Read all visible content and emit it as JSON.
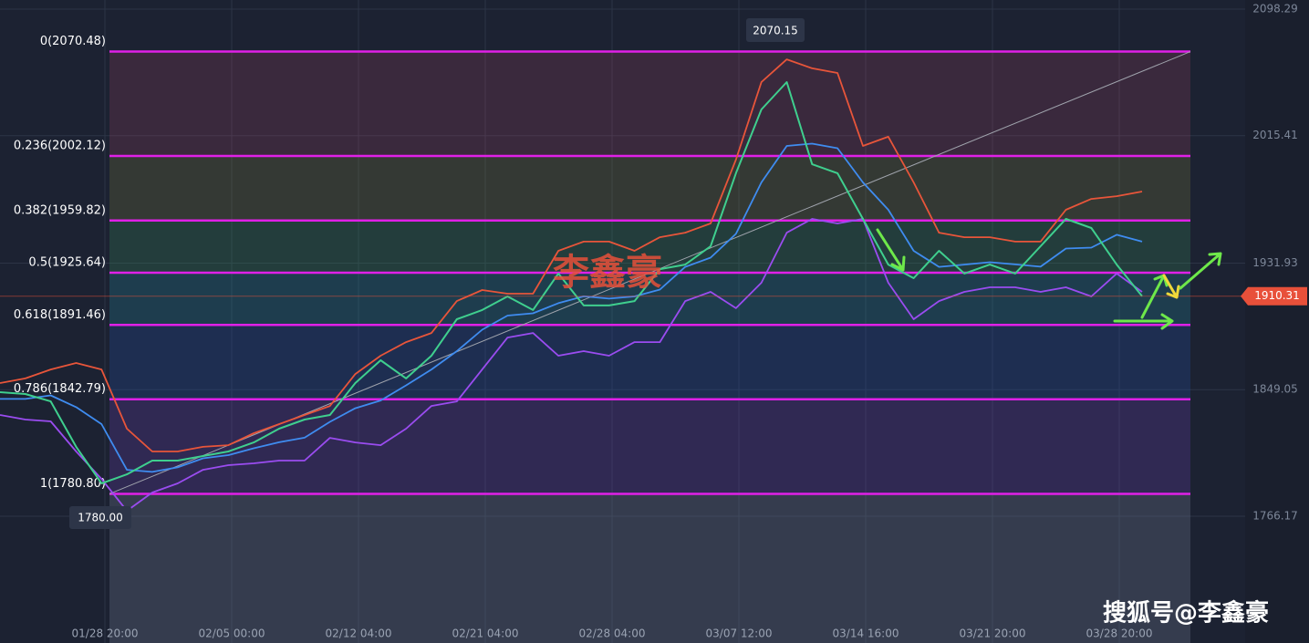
{
  "chart_data": {
    "type": "line",
    "ylim": [
      1683.14,
      2104.26
    ],
    "yticks": [
      1766.17,
      1849.05,
      1931.93,
      2015.41,
      2098.29
    ],
    "time_labels": [
      "01/28 20:00",
      "02/05 00:00",
      "02/12 04:00",
      "02/21 04:00",
      "02/28 04:00",
      "03/07 12:00",
      "03/14 16:00",
      "03/21 20:00",
      "03/28 20:00"
    ],
    "fib_levels": [
      {
        "value": 2070.48,
        "label": "0(2070.48)",
        "fill": "rgba(200,80,110,0.18)"
      },
      {
        "value": 2002.12,
        "label": "0.236(2002.12)",
        "fill": "rgba(150,150,60,0.20)"
      },
      {
        "value": 1959.82,
        "label": "0.382(1959.82)",
        "fill": "rgba(60,150,90,0.24)"
      },
      {
        "value": 1925.64,
        "label": "0.5(1925.64)",
        "fill": "rgba(40,140,160,0.26)"
      },
      {
        "value": 1891.46,
        "label": "0.618(1891.46)",
        "fill": "rgba(40,80,170,0.26)"
      },
      {
        "value": 1842.79,
        "label": "0.786(1842.79)",
        "fill": "rgba(100,60,170,0.28)"
      },
      {
        "value": 1780.8,
        "label": "1(1780.80)",
        "fill": "rgba(120,130,150,0.28)"
      }
    ],
    "fib_color": "#e020e8",
    "series": [
      {
        "color": "#e8553a",
        "values": [
          1853.4,
          1856.4,
          1862.3,
          1866.5,
          1862.3,
          1823.5,
          1808.6,
          1808.6,
          1811.6,
          1812.7,
          1820.5,
          1826.5,
          1832.5,
          1838.4,
          1859.3,
          1871.3,
          1880.2,
          1886.2,
          1907.1,
          1914.3,
          1911.9,
          1911.9,
          1940.0,
          1946.0,
          1946.0,
          1940.0,
          1948.9,
          1951.9,
          1957.9,
          1999.7,
          2050.5,
          2065.4,
          2059.5,
          2056.5,
          2008.7,
          2014.7,
          1984.8,
          1951.9,
          1948.9,
          1948.9,
          1946.0,
          1946.0,
          1966.9,
          1974.0,
          1975.8,
          1978.8
        ]
      },
      {
        "color": "#9a4cf0",
        "values": [
          1832.5,
          1829.5,
          1828.3,
          1808.6,
          1790.6,
          1769.7,
          1781.7,
          1787.7,
          1796.6,
          1799.6,
          1800.8,
          1802.6,
          1802.6,
          1817.5,
          1814.5,
          1812.7,
          1823.5,
          1838.4,
          1841.4,
          1862.3,
          1883.2,
          1886.2,
          1871.3,
          1874.3,
          1871.3,
          1880.2,
          1880.2,
          1907.1,
          1913.1,
          1902.4,
          1919.1,
          1951.9,
          1960.9,
          1957.9,
          1960.9,
          1919.1,
          1895.2,
          1907.1,
          1913.1,
          1916.1,
          1916.1,
          1913.1,
          1916.1,
          1910.1,
          1925.1,
          1913.1
        ]
      },
      {
        "color": "#3f8cf0",
        "values": [
          1843.0,
          1843.0,
          1845.3,
          1837.6,
          1826.5,
          1796.6,
          1795.2,
          1798.2,
          1804.1,
          1806.2,
          1810.7,
          1814.6,
          1817.6,
          1828.0,
          1836.9,
          1842.0,
          1851.9,
          1862.3,
          1874.3,
          1888.3,
          1897.6,
          1899.1,
          1905.7,
          1910.2,
          1908.7,
          1910.1,
          1914.6,
          1929.5,
          1935.5,
          1951.1,
          1984.8,
          2008.7,
          2010.2,
          2007.2,
          1984.8,
          1966.9,
          1940.0,
          1929.5,
          1931.0,
          1932.5,
          1931.1,
          1929.6,
          1941.5,
          1942.1,
          1950.5,
          1946.0
        ]
      },
      {
        "color": "#3fcf8e",
        "values": [
          1847.4,
          1846.2,
          1841.4,
          1811.6,
          1787.7,
          1793.6,
          1802.6,
          1802.6,
          1805.6,
          1808.6,
          1814.5,
          1823.5,
          1829.5,
          1832.5,
          1853.4,
          1868.3,
          1856.4,
          1871.3,
          1895.2,
          1901.2,
          1910.1,
          1901.2,
          1925.1,
          1904.2,
          1904.2,
          1907.1,
          1928.0,
          1931.0,
          1943.0,
          1990.8,
          2032.6,
          2050.5,
          1996.7,
          1990.8,
          1960.9,
          1931.0,
          1922.1,
          1940.0,
          1925.1,
          1931.0,
          1925.1,
          1943.0,
          1960.9,
          1954.9,
          1931.0,
          1910.3
        ]
      }
    ],
    "last_price": 1910.31,
    "last_price_color": "#e8503a",
    "high_label": "2070.15",
    "low_label": "1780.00",
    "watermark": "李鑫豪",
    "source": "搜狐号@李鑫豪"
  }
}
